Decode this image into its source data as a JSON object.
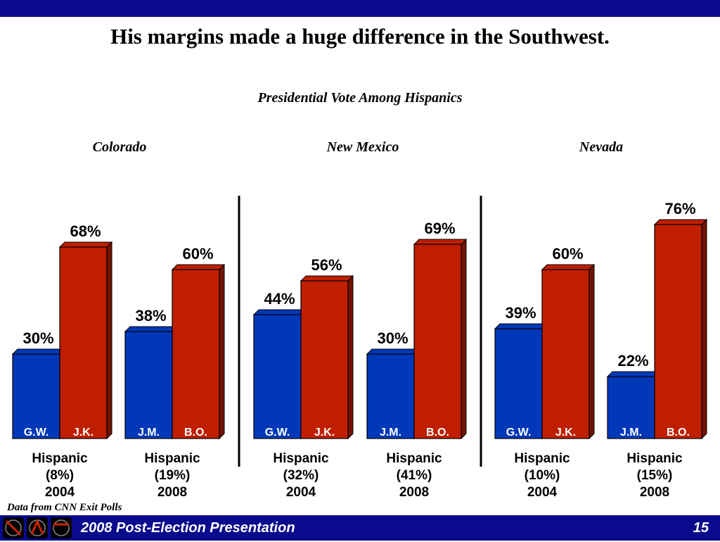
{
  "header": {
    "title": "His margins made a huge difference in the Southwest.",
    "subtitle": "Presidential Vote Among Hispanics"
  },
  "states": [
    "Colorado",
    "New Mexico",
    "Nevada"
  ],
  "colors": {
    "republican": "#0038b8",
    "democrat": "#bf1f00",
    "band": "#0a0a8c"
  },
  "chart_data": {
    "type": "bar",
    "title": "Presidential Vote Among Hispanics",
    "unit": "%",
    "groups": [
      {
        "state": "Colorado",
        "line1": "Hispanic",
        "line2": "(8%)",
        "year": "2004",
        "bars": [
          {
            "candidate": "G.W.",
            "value": 30,
            "party": "republican"
          },
          {
            "candidate": "J.K.",
            "value": 68,
            "party": "democrat"
          }
        ]
      },
      {
        "state": "Colorado",
        "line1": "Hispanic",
        "line2": "(19%)",
        "year": "2008",
        "bars": [
          {
            "candidate": "J.M.",
            "value": 38,
            "party": "republican"
          },
          {
            "candidate": "B.O.",
            "value": 60,
            "party": "democrat"
          }
        ]
      },
      {
        "state": "New Mexico",
        "line1": "Hispanic",
        "line2": "(32%)",
        "year": "2004",
        "bars": [
          {
            "candidate": "G.W.",
            "value": 44,
            "party": "republican"
          },
          {
            "candidate": "J.K.",
            "value": 56,
            "party": "democrat"
          }
        ]
      },
      {
        "state": "New Mexico",
        "line1": "Hispanic",
        "line2": "(41%)",
        "year": "2008",
        "bars": [
          {
            "candidate": "J.M.",
            "value": 30,
            "party": "republican"
          },
          {
            "candidate": "B.O.",
            "value": 69,
            "party": "democrat"
          }
        ]
      },
      {
        "state": "Nevada",
        "line1": "Hispanic",
        "line2": "(10%)",
        "year": "2004",
        "bars": [
          {
            "candidate": "G.W.",
            "value": 39,
            "party": "republican"
          },
          {
            "candidate": "J.K.",
            "value": 60,
            "party": "democrat"
          }
        ]
      },
      {
        "state": "Nevada",
        "line1": "Hispanic",
        "line2": "(15%)",
        "year": "2008",
        "bars": [
          {
            "candidate": "J.M.",
            "value": 22,
            "party": "republican"
          },
          {
            "candidate": "B.O.",
            "value": 76,
            "party": "democrat"
          }
        ]
      }
    ]
  },
  "footnote": "Data from CNN Exit Polls",
  "footer": {
    "text": "2008 Post-Election Presentation",
    "page": "15"
  }
}
